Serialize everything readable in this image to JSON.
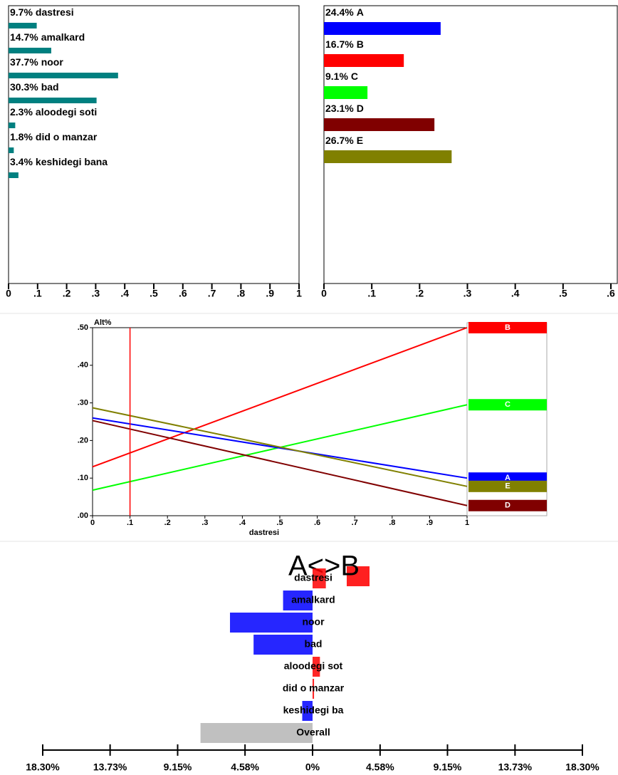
{
  "chart_data": [
    {
      "type": "bar",
      "orientation": "horizontal",
      "categories": [
        "dastresi",
        "amalkard",
        "noor",
        "bad",
        "aloodegi soti",
        "did o manzar",
        "keshidegi bana"
      ],
      "values": [
        0.097,
        0.147,
        0.377,
        0.303,
        0.023,
        0.018,
        0.034
      ],
      "value_labels": [
        "9.7%",
        "14.7%",
        "37.7%",
        "30.3%",
        "2.3%",
        "1.8%",
        "3.4%"
      ],
      "color": "#008080",
      "xlim": [
        0,
        1
      ],
      "xticks": [
        0,
        {
          "value": 0.1,
          "label": ".1"
        },
        {
          "value": 0.2,
          "label": ".2"
        },
        {
          "value": 0.3,
          "label": ".3"
        },
        {
          "value": 0.4,
          "label": ".4"
        },
        {
          "value": 0.5,
          "label": ".5"
        },
        {
          "value": 0.6,
          "label": ".6"
        },
        {
          "value": 0.7,
          "label": ".7"
        },
        {
          "value": 0.8,
          "label": ".8"
        },
        {
          "value": 0.9,
          "label": ".9"
        },
        1
      ]
    },
    {
      "type": "bar",
      "orientation": "horizontal",
      "categories": [
        "A",
        "B",
        "C",
        "D",
        "E"
      ],
      "values": [
        0.244,
        0.167,
        0.091,
        0.231,
        0.267
      ],
      "value_labels": [
        "24.4%",
        "16.7%",
        "9.1%",
        "23.1%",
        "26.7%"
      ],
      "colors": [
        "#0000ff",
        "#ff0000",
        "#00ff00",
        "#800000",
        "#808000"
      ],
      "xlim": [
        0,
        0.6
      ],
      "xticks": [
        0,
        {
          "value": 0.1,
          "label": ".1"
        },
        {
          "value": 0.2,
          "label": ".2"
        },
        {
          "value": 0.3,
          "label": ".3"
        },
        {
          "value": 0.4,
          "label": ".4"
        },
        {
          "value": 0.5,
          "label": ".5"
        },
        {
          "value": 0.6,
          "label": ".6"
        }
      ]
    },
    {
      "type": "line",
      "ylabel": "Alt%",
      "xlabel": "dastresi",
      "x": [
        0,
        1
      ],
      "series": [
        {
          "name": "B",
          "color": "#ff0000",
          "values": [
            0.13,
            0.5
          ]
        },
        {
          "name": "C",
          "color": "#00ff00",
          "values": [
            0.068,
            0.295
          ]
        },
        {
          "name": "A",
          "color": "#0000ff",
          "values": [
            0.26,
            0.1
          ]
        },
        {
          "name": "E",
          "color": "#808000",
          "values": [
            0.287,
            0.078
          ]
        },
        {
          "name": "D",
          "color": "#800000",
          "values": [
            0.253,
            0.027
          ]
        }
      ],
      "cursor_x": 0.1,
      "xlim": [
        0,
        1
      ],
      "ylim": [
        0,
        0.5
      ],
      "xticks": [
        0,
        {
          "value": 0.1,
          "label": ".1"
        },
        {
          "value": 0.2,
          "label": ".2"
        },
        {
          "value": 0.3,
          "label": ".3"
        },
        {
          "value": 0.4,
          "label": ".4"
        },
        {
          "value": 0.5,
          "label": ".5"
        },
        {
          "value": 0.6,
          "label": ".6"
        },
        {
          "value": 0.7,
          "label": ".7"
        },
        {
          "value": 0.8,
          "label": ".8"
        },
        {
          "value": 0.9,
          "label": ".9"
        },
        1
      ],
      "yticks": [
        {
          "value": 0,
          "label": ".00"
        },
        {
          "value": 0.1,
          "label": ".10"
        },
        {
          "value": 0.2,
          "label": ".20"
        },
        {
          "value": 0.3,
          "label": ".30"
        },
        {
          "value": 0.4,
          "label": ".40"
        },
        {
          "value": 0.5,
          "label": ".50"
        }
      ]
    },
    {
      "type": "bar",
      "orientation": "diverging",
      "title": "A<>B",
      "categories": [
        "dastresi",
        "amalkard",
        "noor",
        "bad",
        "aloodegi sot",
        "did o manzar",
        "keshidegi ba",
        "Overall"
      ],
      "values": [
        0.9,
        -2.0,
        -5.6,
        -4.0,
        0.5,
        0.1,
        -0.7,
        -7.6
      ],
      "colors": [
        "#ff0000",
        "#0000ff",
        "#0000ff",
        "#0000ff",
        "#ff0000",
        "#ff0000",
        "#0000ff",
        "#c0c0c0"
      ],
      "xlim": [
        -18.3,
        18.3
      ],
      "xticks": [
        {
          "value": -18.3,
          "label": "18.30%"
        },
        {
          "value": -13.73,
          "label": "13.73%"
        },
        {
          "value": -9.15,
          "label": "9.15%"
        },
        {
          "value": -4.58,
          "label": "4.58%"
        },
        {
          "value": 0,
          "label": "0%"
        },
        {
          "value": 4.58,
          "label": "4.58%"
        },
        {
          "value": 9.15,
          "label": "9.15%"
        },
        {
          "value": 13.73,
          "label": "13.73%"
        },
        {
          "value": 18.3,
          "label": "18.30%"
        }
      ]
    }
  ]
}
